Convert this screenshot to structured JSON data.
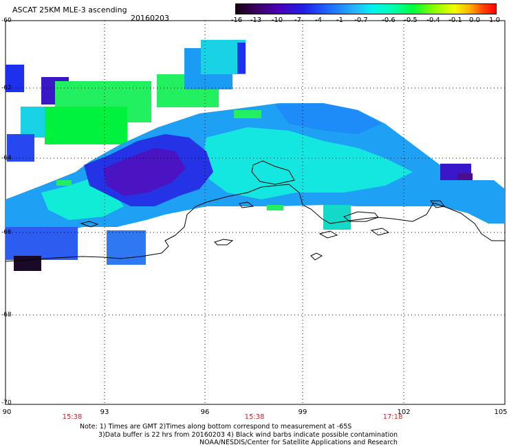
{
  "header": {
    "title": "ASCAT 25KM MLE-3 ascending",
    "date": "20160203"
  },
  "colorbar": {
    "labels": [
      "-16",
      "-13",
      "-10",
      "-7",
      "-4",
      "-1",
      "-0.7",
      "-0.6",
      "-0.5",
      "-0.4",
      "-0.1",
      "0.0",
      "1.0"
    ]
  },
  "axes": {
    "lat_labels": [
      "-60",
      "-62",
      "-64",
      "-66",
      "-68",
      "-70"
    ],
    "lon_labels": [
      "90",
      "93",
      "96",
      "99",
      "102",
      "105"
    ]
  },
  "times": [
    "15:38",
    "15:38",
    "17:18"
  ],
  "notes": {
    "line1": "Note: 1) Times are GMT 2)Times along bottom correspond to measurement at -65S",
    "line2": "3)Data buffer is 22 hrs from 20160203 4) Black wind barbs indicate possible contamination",
    "line3": "NOAA/NESDIS/Center for Satellite Applications and Research"
  }
}
